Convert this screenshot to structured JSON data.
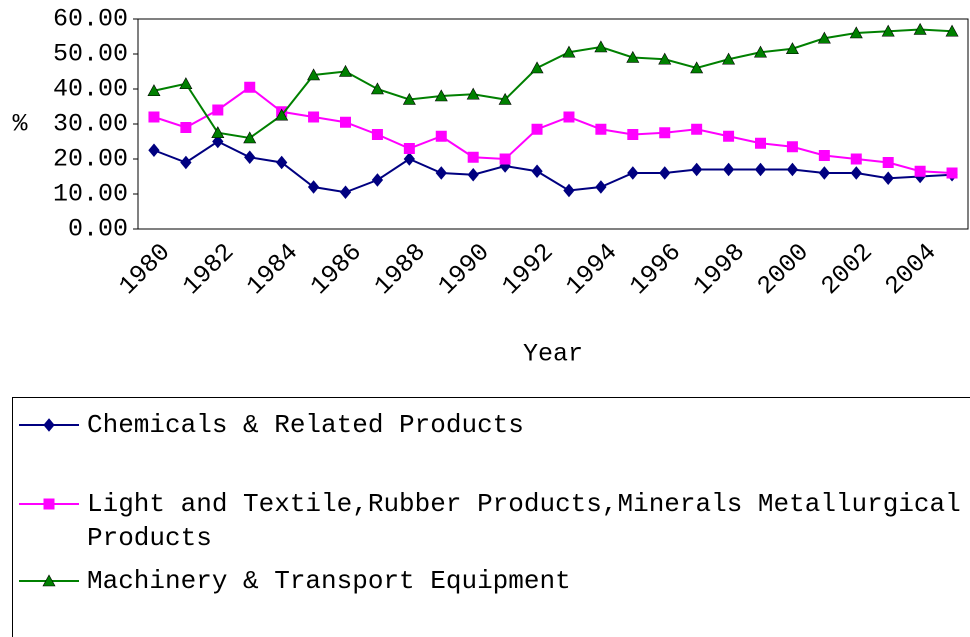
{
  "chart_data": {
    "type": "line",
    "x_label": "Year",
    "y_label": "%",
    "categories": [
      "1980",
      null,
      "1982",
      null,
      "1984",
      null,
      "1986",
      null,
      "1988",
      null,
      "1990",
      null,
      "1992",
      null,
      "1994",
      null,
      "1996",
      null,
      "1998",
      null,
      "2000",
      null,
      "2002",
      null,
      "2004",
      null
    ],
    "series": [
      {
        "name": "Chemicals & Related Products",
        "color": "#000080",
        "marker": "diamond",
        "values": [
          22.5,
          19,
          25,
          20.5,
          19,
          12,
          10.5,
          14,
          20,
          16,
          15.5,
          18,
          16.5,
          11,
          12,
          16,
          16,
          17,
          17,
          17,
          17,
          16,
          16,
          14.5,
          15,
          15.5
        ]
      },
      {
        "name": "Light and Textile,Rubber Products,Minerals Metallurgical Products",
        "color": "#ff00ff",
        "marker": "square",
        "values": [
          32,
          29,
          34,
          40.5,
          33.5,
          32,
          30.5,
          27,
          23,
          26.5,
          20.5,
          20,
          28.5,
          32,
          28.5,
          27,
          27.5,
          28.5,
          26.5,
          24.5,
          23.5,
          21,
          20,
          19,
          16.5,
          16
        ]
      },
      {
        "name": "Machinery & Transport Equipment",
        "color": "#008000",
        "marker": "triangle",
        "values": [
          39.5,
          41.5,
          27.5,
          26,
          32.5,
          44,
          45,
          40,
          37,
          38,
          38.5,
          37,
          46,
          50.5,
          52,
          49,
          48.5,
          46,
          48.5,
          50.5,
          51.5,
          54.5,
          56,
          56.5,
          57,
          56.5
        ]
      }
    ],
    "ylim": [
      0,
      60
    ],
    "yticks": [
      {
        "value": 0,
        "label": "0.00"
      },
      {
        "value": 10,
        "label": "10.00"
      },
      {
        "value": 20,
        "label": "20.00"
      },
      {
        "value": 30,
        "label": "30.00"
      },
      {
        "value": 40,
        "label": "40.00"
      },
      {
        "value": 50,
        "label": "50.00"
      },
      {
        "value": 60,
        "label": "60.00"
      }
    ],
    "grid": false
  }
}
